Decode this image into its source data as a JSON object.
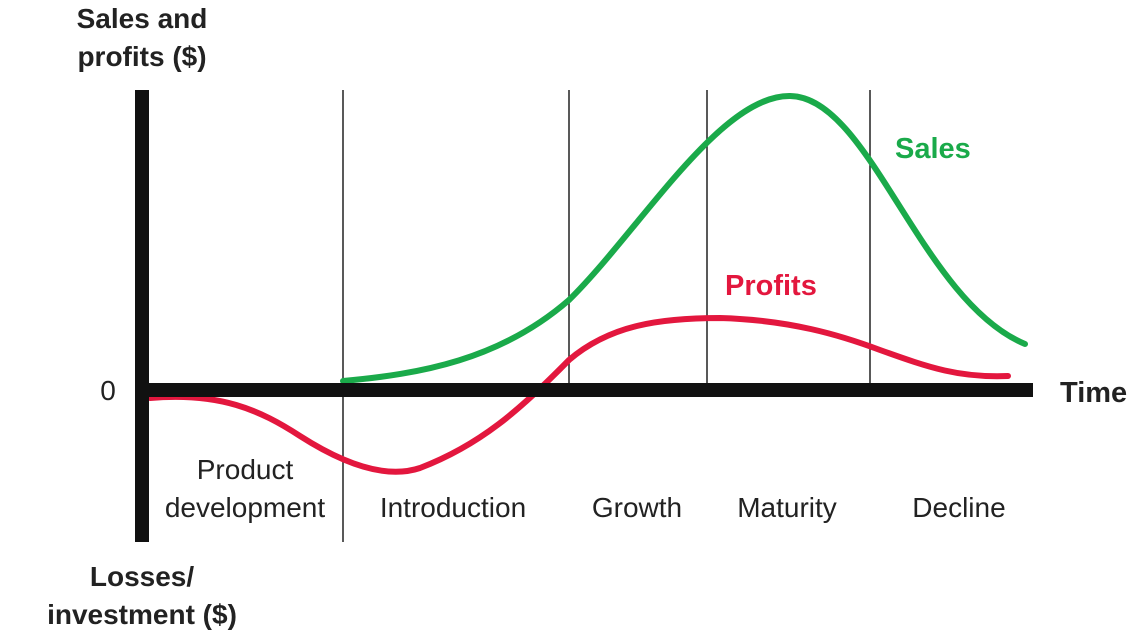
{
  "y_axis": {
    "top_label_line1": "Sales and",
    "top_label_line2": "profits ($)",
    "bottom_label_line1": "Losses/",
    "bottom_label_line2": "investment ($)",
    "zero_label": "0"
  },
  "x_axis": {
    "label": "Time"
  },
  "stages": {
    "product_development_line1": "Product",
    "product_development_line2": "development",
    "introduction": "Introduction",
    "growth": "Growth",
    "maturity": "Maturity",
    "decline": "Decline"
  },
  "curves": {
    "sales": {
      "label": "Sales",
      "color": "#1aaa4a"
    },
    "profits": {
      "label": "Profits",
      "color": "#e3173e"
    }
  },
  "colors": {
    "axis": "#111111",
    "divider": "#222222",
    "text": "#222222"
  }
}
